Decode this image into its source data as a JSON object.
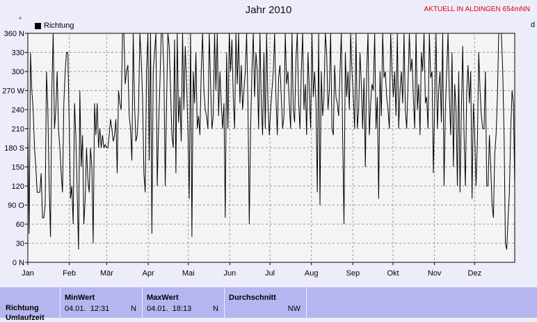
{
  "header": {
    "title": "Jahr 2010",
    "station": "AKTUELL IN ALDINGEN 654mNN",
    "degree_mark": "°",
    "right_edge_letter": "d"
  },
  "chart_data": {
    "type": "line",
    "title": "Jahr 2010",
    "legend": [
      {
        "name": "Richtung",
        "color": "#000000"
      }
    ],
    "legend_position": "top-left",
    "grid": true,
    "xlabel": "",
    "ylabel": "",
    "ylim": [
      0,
      360
    ],
    "xlim": [
      1,
      365
    ],
    "y_ticks": [
      "0 N",
      "30",
      "60",
      "90 O",
      "120",
      "150",
      "180 S",
      "210",
      "240",
      "270 W",
      "300",
      "330",
      "360 N"
    ],
    "x_ticks": [
      "Jan",
      "Feb",
      "Mär",
      "Apr",
      "Mai",
      "Jun",
      "Jul",
      "Aug",
      "Sep",
      "Okt",
      "Nov",
      "Dez"
    ],
    "series": [
      {
        "name": "Richtung",
        "values": [
          210,
          45,
          330,
          270,
          240,
          180,
          150,
          110,
          110,
          110,
          140,
          70,
          70,
          90,
          300,
          240,
          120,
          40,
          270,
          360,
          210,
          240,
          300,
          210,
          180,
          140,
          110,
          250,
          300,
          330,
          330,
          220,
          100,
          120,
          60,
          250,
          200,
          110,
          20,
          270,
          150,
          200,
          60,
          100,
          180,
          130,
          110,
          180,
          150,
          30,
          250,
          200,
          250,
          180,
          210,
          180,
          200,
          180,
          185,
          180,
          180,
          200,
          225,
          210,
          190,
          200,
          225,
          140,
          270,
          250,
          240,
          360,
          360,
          280,
          300,
          310,
          230,
          210,
          160,
          360,
          250,
          190,
          200,
          240,
          360,
          320,
          260,
          140,
          110,
          300,
          360,
          160,
          360,
          45,
          300,
          330,
          360,
          120,
          210,
          280,
          360,
          360,
          300,
          120,
          250,
          360,
          340,
          270,
          200,
          180,
          350,
          140,
          360,
          220,
          260,
          190,
          360,
          240,
          340,
          280,
          210,
          100,
          360,
          40,
          300,
          250,
          330,
          210,
          230,
          200,
          300,
          360,
          270,
          240,
          230,
          210,
          360,
          280,
          210,
          230,
          360,
          270,
          360,
          230,
          300,
          250,
          210,
          250,
          70,
          330,
          210,
          360,
          300,
          350,
          260,
          210,
          360,
          280,
          360,
          250,
          310,
          240,
          270,
          300,
          360,
          250,
          60,
          210,
          300,
          360,
          260,
          330,
          300,
          210,
          360,
          250,
          200,
          330,
          210,
          360,
          250,
          200,
          240,
          270,
          300,
          360,
          260,
          200,
          290,
          310,
          260,
          210,
          230,
          360,
          280,
          300,
          250,
          210,
          360,
          240,
          220,
          320,
          360,
          250,
          210,
          300,
          360,
          240,
          280,
          200,
          330,
          270,
          210,
          360,
          260,
          300,
          250,
          110,
          360,
          90,
          300,
          230,
          260,
          360,
          330,
          240,
          270,
          360,
          210,
          200,
          310,
          260,
          250,
          230,
          300,
          360,
          200,
          60,
          330,
          260,
          300,
          240,
          360,
          300,
          260,
          210,
          360,
          210,
          240,
          330,
          280,
          210,
          290,
          150,
          300,
          360,
          200,
          250,
          280,
          270,
          360,
          210,
          260,
          100,
          300,
          230,
          360,
          290,
          300,
          260,
          240,
          210,
          360,
          300,
          260,
          300,
          230,
          360,
          210,
          270,
          300,
          250,
          360,
          240,
          210,
          280,
          360,
          300,
          320,
          260,
          210,
          360,
          240,
          280,
          200,
          330,
          300,
          360,
          250,
          260,
          210,
          360,
          290,
          300,
          140,
          250,
          360,
          210,
          270,
          300,
          220,
          360,
          120,
          240,
          300,
          360,
          260,
          200,
          330,
          150,
          280,
          240,
          120,
          300,
          110,
          240,
          340,
          200,
          120,
          270,
          310,
          250,
          300,
          100,
          250,
          200,
          120,
          190,
          330,
          270,
          230,
          210,
          210,
          300,
          120,
          120,
          200,
          150,
          90,
          70,
          170,
          200,
          260,
          360,
          360,
          360,
          300,
          200,
          30,
          20,
          70,
          110,
          210,
          270,
          250,
          120
        ]
      }
    ]
  },
  "stats": {
    "row_label": "Richtung",
    "row_label2": "Umlaufzeit",
    "min": {
      "header": "MinWert",
      "date": "04.01.",
      "time": "12:31",
      "dir": "N"
    },
    "max": {
      "header": "MaxWert",
      "date": "04.01.",
      "time": "18:13",
      "dir": "N"
    },
    "avg": {
      "header": "Durchschnitt",
      "value": "NW"
    }
  },
  "colors": {
    "background": "#ececfb",
    "plot_background": "#f4f4f4",
    "grid": "#9a9a9a",
    "line": "#000000",
    "station_text": "#e00000",
    "stats_background": "#b5b5f0"
  }
}
